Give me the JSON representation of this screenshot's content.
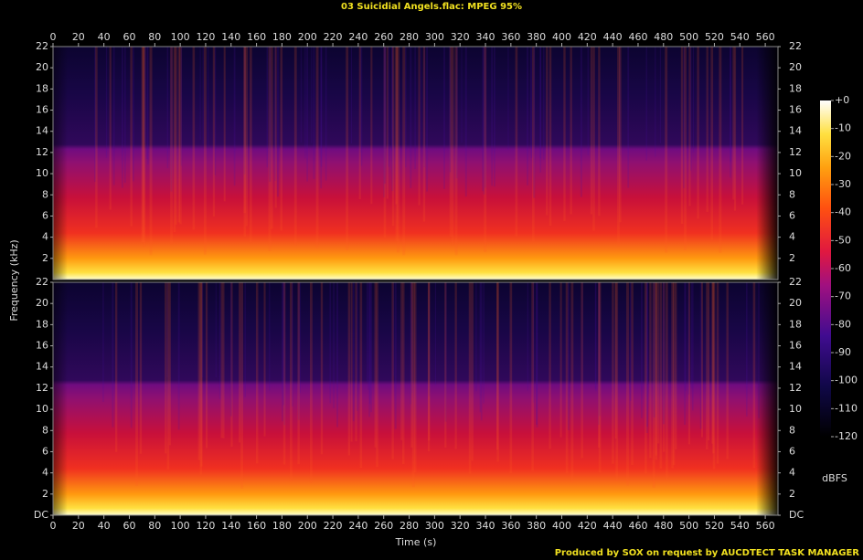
{
  "chart_data": {
    "type": "spectrogram",
    "title": "03 Suicidial Angels.flac: MPEG 95%",
    "xlabel": "Time (s)",
    "ylabel": "Frequency (kHz)",
    "xlim": [
      0,
      570
    ],
    "xticks": [
      0,
      20,
      40,
      60,
      80,
      100,
      120,
      140,
      160,
      180,
      200,
      220,
      240,
      260,
      280,
      300,
      320,
      340,
      360,
      380,
      400,
      420,
      440,
      460,
      480,
      500,
      520,
      540,
      560
    ],
    "panels": [
      {
        "ylim": [
          0,
          22
        ],
        "yticks": [
          2,
          4,
          6,
          8,
          10,
          12,
          14,
          16,
          18,
          20,
          22
        ]
      },
      {
        "ylim": [
          0,
          22
        ],
        "yticks": [
          {
            "value": 0,
            "label": "DC"
          },
          2,
          4,
          6,
          8,
          10,
          12,
          14,
          16,
          18,
          20,
          22
        ]
      }
    ],
    "colorbar": {
      "label": "dBFS",
      "lim": [
        -120,
        0
      ],
      "ticks": [
        {
          "value": 0,
          "label": "+0"
        },
        -10,
        -20,
        -30,
        -40,
        -50,
        -60,
        -70,
        -80,
        -90,
        -100,
        -110,
        -120
      ]
    },
    "footer": "Produced by SOX on request by AUCDTECT TASK MANAGER"
  }
}
